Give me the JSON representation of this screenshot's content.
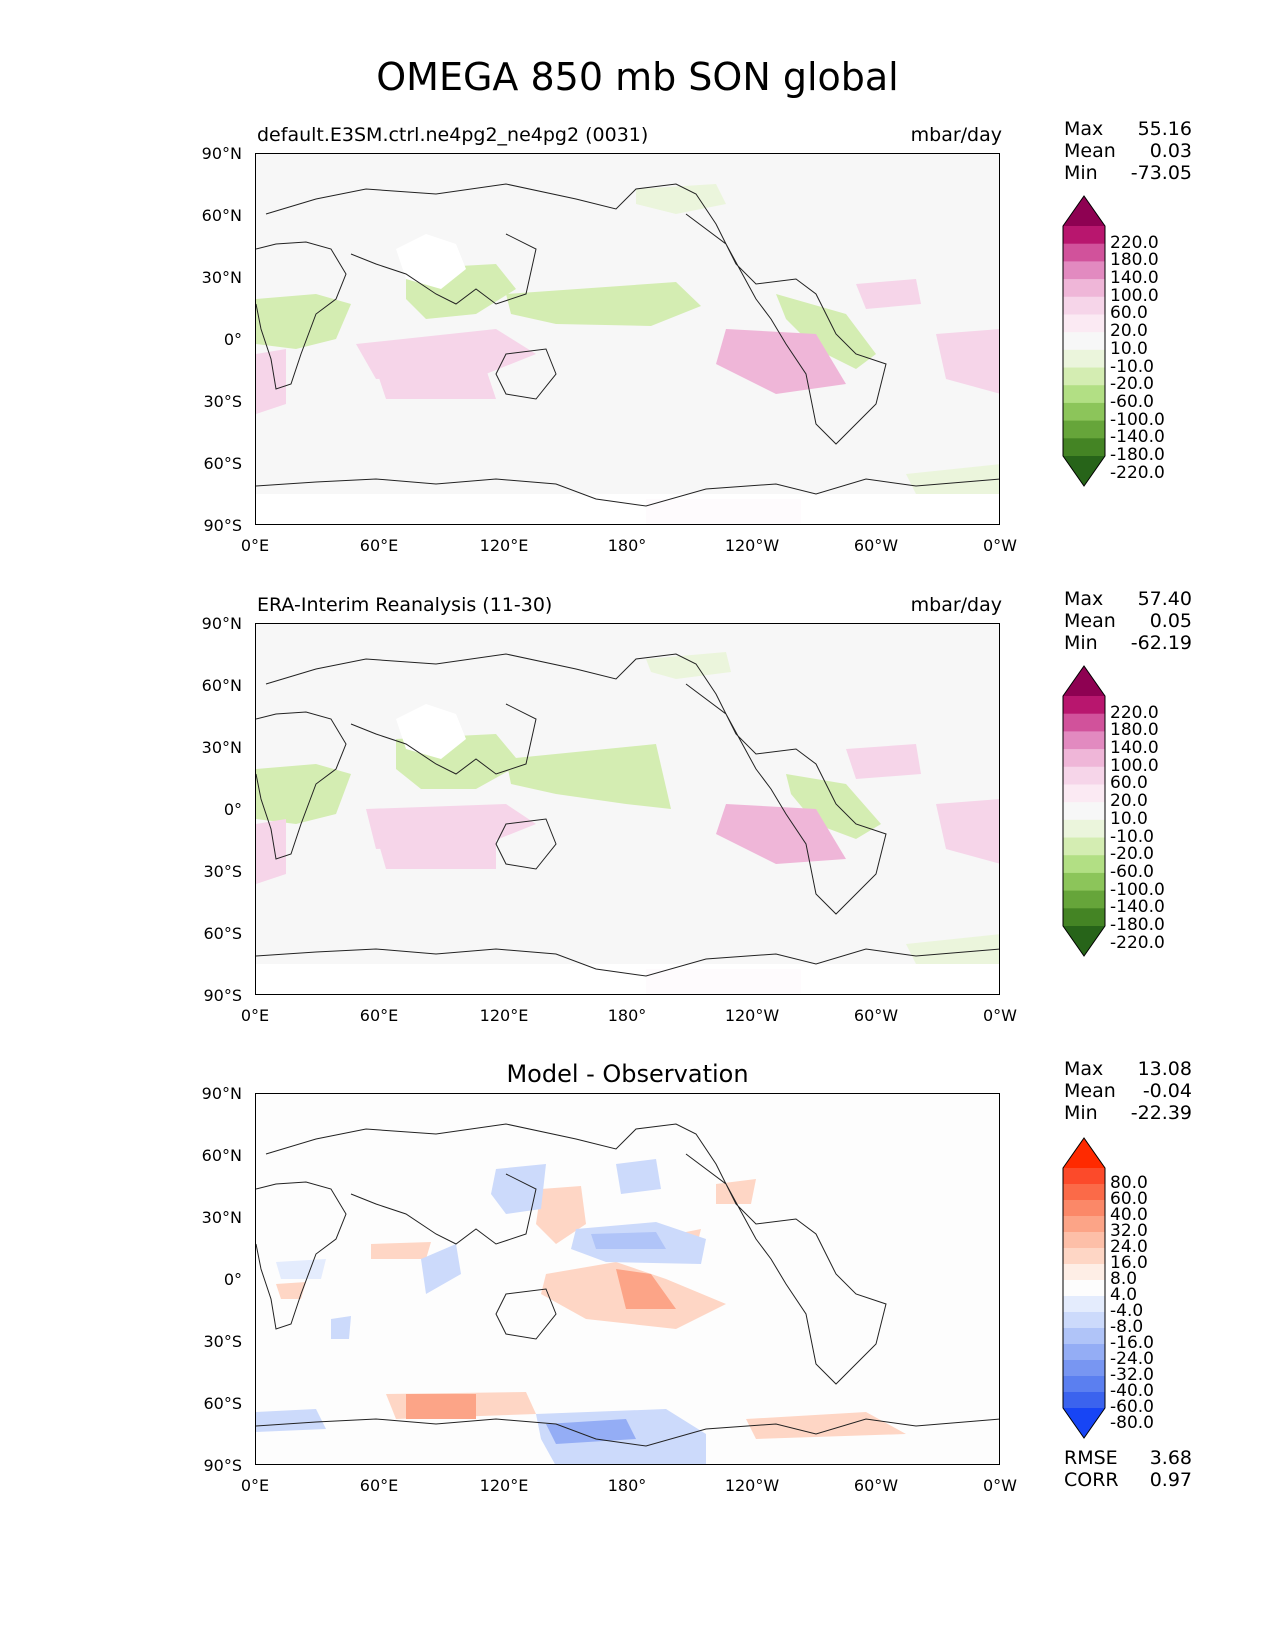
{
  "title": "OMEGA 850 mb SON global",
  "x_ticks": [
    "0°E",
    "60°E",
    "120°E",
    "180°",
    "120°W",
    "60°W",
    "0°W"
  ],
  "y_ticks": [
    "90°N",
    "60°N",
    "30°N",
    "0°",
    "30°S",
    "60°S",
    "90°S"
  ],
  "panels": [
    {
      "id": "test",
      "title_left": "default.E3SM.ctrl.ne4pg2_ne4pg2 (0031)",
      "units": "mbar/day",
      "stats": {
        "max_label": "Max",
        "max": "55.16",
        "mean_label": "Mean",
        "mean": "0.03",
        "min_label": "Min",
        "min": "-73.05"
      },
      "colorbar": {
        "labels": [
          "220.0",
          "180.0",
          "140.0",
          "100.0",
          "60.0",
          "20.0",
          "10.0",
          "-10.0",
          "-20.0",
          "-60.0",
          "-100.0",
          "-140.0",
          "-180.0",
          "-220.0"
        ],
        "colors": [
          "#8e0152",
          "#b8166e",
          "#d1529b",
          "#e28ac0",
          "#efb6d8",
          "#f6d5e9",
          "#fbeaf3",
          "#f7f7f7",
          "#ebf5dc",
          "#d4edb2",
          "#b2df84",
          "#8cc55a",
          "#66a53a",
          "#448424",
          "#276419"
        ]
      }
    },
    {
      "id": "ref",
      "title_left": "ERA-Interim Reanalysis (11-30)",
      "units": "mbar/day",
      "stats": {
        "max_label": "Max",
        "max": "57.40",
        "mean_label": "Mean",
        "mean": "0.05",
        "min_label": "Min",
        "min": "-62.19"
      },
      "colorbar": {
        "labels": [
          "220.0",
          "180.0",
          "140.0",
          "100.0",
          "60.0",
          "20.0",
          "10.0",
          "-10.0",
          "-20.0",
          "-60.0",
          "-100.0",
          "-140.0",
          "-180.0",
          "-220.0"
        ],
        "colors": [
          "#8e0152",
          "#b8166e",
          "#d1529b",
          "#e28ac0",
          "#efb6d8",
          "#f6d5e9",
          "#fbeaf3",
          "#f7f7f7",
          "#ebf5dc",
          "#d4edb2",
          "#b2df84",
          "#8cc55a",
          "#66a53a",
          "#448424",
          "#276419"
        ]
      }
    },
    {
      "id": "diff",
      "title_center": "Model - Observation",
      "stats": {
        "max_label": "Max",
        "max": "13.08",
        "mean_label": "Mean",
        "mean": "-0.04",
        "min_label": "Min",
        "min": "-22.39"
      },
      "extra_stats": {
        "rmse_label": "RMSE",
        "rmse": "3.68",
        "corr_label": "CORR",
        "corr": "0.97"
      },
      "colorbar": {
        "labels": [
          "80.0",
          "60.0",
          "40.0",
          "32.0",
          "24.0",
          "16.0",
          "8.0",
          "4.0",
          "-4.0",
          "-8.0",
          "-16.0",
          "-24.0",
          "-32.0",
          "-40.0",
          "-60.0",
          "-80.0"
        ],
        "colors": [
          "#ff2a00",
          "#fc4a2a",
          "#fb6a48",
          "#fb8868",
          "#fca487",
          "#fdbfa8",
          "#fed6c5",
          "#feeee6",
          "#fdfdfd",
          "#e4ecfd",
          "#ccdafb",
          "#b0c4f8",
          "#94adf5",
          "#7896f2",
          "#5b7ff0",
          "#3b63ee",
          "#1745f5"
        ]
      }
    }
  ]
}
